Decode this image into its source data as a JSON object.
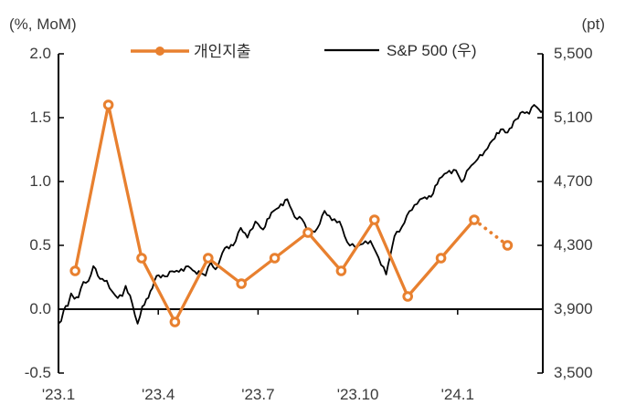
{
  "colors": {
    "spending_orange": "#E8802F",
    "sp500_black": "#000000",
    "axis": "#000000",
    "tick_text": "#3a3a3a",
    "background": "#ffffff"
  },
  "header": {
    "left_axis_unit": "(%, MoM)",
    "right_axis_unit": "(pt)"
  },
  "legend": [
    {
      "label": "개인지출",
      "color": "#E8802F",
      "marker": "filled-circle-on-line"
    },
    {
      "label": "S&P 500 (우)",
      "color": "#000000",
      "marker": "line"
    }
  ],
  "chart_data": {
    "type": "line",
    "title": "",
    "grid": false,
    "legend_position": "top",
    "left_axis": {
      "unit": "(%, MoM)",
      "min": -0.5,
      "max": 2.0,
      "tick_values": [
        2.0,
        1.5,
        1.0,
        0.5,
        0.0,
        -0.5
      ],
      "tick_labels": [
        "2.0",
        "1.5",
        "1.0",
        "0.5",
        "0.0",
        "-0.5"
      ]
    },
    "right_axis": {
      "unit": "(pt)",
      "min": 3500,
      "max": 5500,
      "tick_values": [
        5500,
        5100,
        4700,
        4300,
        3900,
        3500
      ],
      "tick_labels": [
        "5,500",
        "5,100",
        "4,700",
        "4,300",
        "3,900",
        "3,500"
      ]
    },
    "x_axis": {
      "labels": [
        "'23.1",
        "'23.4",
        "'23.7",
        "'23.10",
        "'24.1"
      ],
      "label_months": [
        0,
        3,
        6,
        9,
        12
      ],
      "months_span": 14.56,
      "baseline_at_left_value": 0.0
    },
    "series": [
      {
        "name": "개인지출",
        "axis": "left",
        "color": "#E8802F",
        "style": "line-with-open-circle-markers",
        "categories": [
          "'23.1",
          "'23.2",
          "'23.3",
          "'23.4",
          "'23.5",
          "'23.6",
          "'23.7",
          "'23.8",
          "'23.9",
          "'23.10",
          "'23.11",
          "'23.12",
          "'24.1",
          "'24.2"
        ],
        "values": [
          0.3,
          1.6,
          0.4,
          -0.1,
          0.4,
          0.2,
          0.4,
          0.6,
          0.3,
          0.7,
          0.1,
          0.4,
          0.7,
          0.5
        ],
        "dotted_from_index": 12
      },
      {
        "name": "S&P 500 (우)",
        "axis": "right",
        "color": "#000000",
        "style": "line",
        "points": [
          [
            0.0,
            3810
          ],
          [
            0.08,
            3825
          ],
          [
            0.16,
            3895
          ],
          [
            0.28,
            3920
          ],
          [
            0.38,
            3999
          ],
          [
            0.48,
            3965
          ],
          [
            0.6,
            3973
          ],
          [
            0.75,
            4071
          ],
          [
            0.9,
            4077
          ],
          [
            1.05,
            4170
          ],
          [
            1.25,
            4090
          ],
          [
            1.45,
            4079
          ],
          [
            1.62,
            4010
          ],
          [
            1.78,
            3970
          ],
          [
            1.92,
            3982
          ],
          [
            2.02,
            4046
          ],
          [
            2.15,
            3986
          ],
          [
            2.3,
            3862
          ],
          [
            2.38,
            3809
          ],
          [
            2.52,
            3917
          ],
          [
            2.7,
            3971
          ],
          [
            2.95,
            4109
          ],
          [
            3.2,
            4105
          ],
          [
            3.42,
            4138
          ],
          [
            3.62,
            4134
          ],
          [
            3.9,
            4169
          ],
          [
            4.1,
            4136
          ],
          [
            4.28,
            4124
          ],
          [
            4.42,
            4110
          ],
          [
            4.58,
            4192
          ],
          [
            4.72,
            4150
          ],
          [
            4.85,
            4205
          ],
          [
            5.0,
            4282
          ],
          [
            5.25,
            4299
          ],
          [
            5.48,
            4410
          ],
          [
            5.68,
            4348
          ],
          [
            5.92,
            4450
          ],
          [
            6.15,
            4399
          ],
          [
            6.4,
            4505
          ],
          [
            6.62,
            4536
          ],
          [
            6.88,
            4589
          ],
          [
            7.1,
            4478
          ],
          [
            7.32,
            4464
          ],
          [
            7.55,
            4370
          ],
          [
            7.78,
            4406
          ],
          [
            8.0,
            4516
          ],
          [
            8.22,
            4457
          ],
          [
            8.45,
            4450
          ],
          [
            8.68,
            4320
          ],
          [
            8.92,
            4288
          ],
          [
            9.15,
            4309
          ],
          [
            9.38,
            4328
          ],
          [
            9.62,
            4224
          ],
          [
            9.85,
            4117
          ],
          [
            10.1,
            4358
          ],
          [
            10.32,
            4415
          ],
          [
            10.55,
            4514
          ],
          [
            10.78,
            4559
          ],
          [
            10.95,
            4595
          ],
          [
            11.2,
            4604
          ],
          [
            11.45,
            4719
          ],
          [
            11.68,
            4755
          ],
          [
            11.95,
            4770
          ],
          [
            12.12,
            4697
          ],
          [
            12.35,
            4784
          ],
          [
            12.6,
            4840
          ],
          [
            12.82,
            4891
          ],
          [
            13.05,
            4959
          ],
          [
            13.3,
            5027
          ],
          [
            13.5,
            5006
          ],
          [
            13.75,
            5089
          ],
          [
            13.95,
            5137
          ],
          [
            14.15,
            5124
          ],
          [
            14.3,
            5180
          ],
          [
            14.45,
            5150
          ],
          [
            14.56,
            5145
          ]
        ]
      }
    ]
  }
}
